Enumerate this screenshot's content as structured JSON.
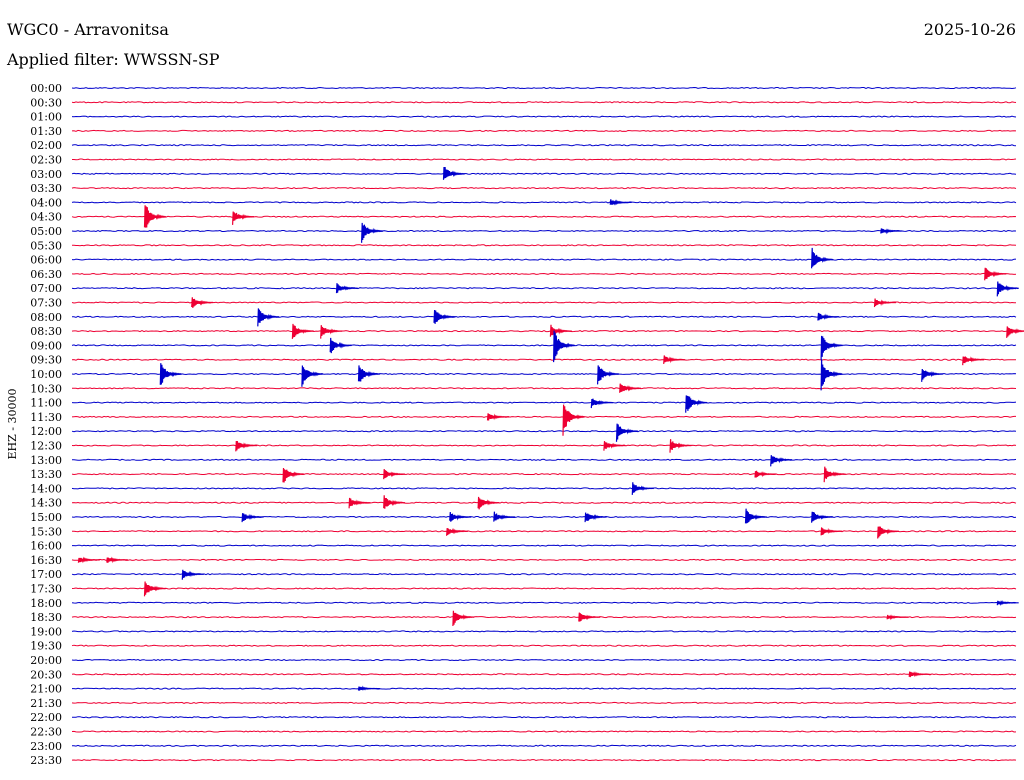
{
  "header": {
    "station": "WGC0 - Arravonitsa",
    "date": "2025-10-26",
    "filter": "Applied filter: WWSSN-SP"
  },
  "chart_data": {
    "type": "line",
    "chart_kind": "helicorder",
    "ylabel": "EHZ - 30000",
    "row_colors": [
      "#0000cc",
      "#ee0033"
    ],
    "time_labels": [
      "00:00",
      "00:30",
      "01:00",
      "01:30",
      "02:00",
      "02:30",
      "03:00",
      "03:30",
      "04:00",
      "04:30",
      "05:00",
      "05:30",
      "06:00",
      "06:30",
      "07:00",
      "07:30",
      "08:00",
      "08:30",
      "09:00",
      "09:30",
      "10:00",
      "10:30",
      "11:00",
      "11:30",
      "12:00",
      "12:30",
      "13:00",
      "13:30",
      "14:00",
      "14:30",
      "15:00",
      "15:30",
      "16:00",
      "16:30",
      "17:00",
      "17:30",
      "18:00",
      "18:30",
      "19:00",
      "19:30",
      "20:00",
      "20:30",
      "21:00",
      "21:30",
      "22:00",
      "22:30",
      "23:00",
      "23:30"
    ],
    "x_range_minutes": [
      0,
      30
    ],
    "events": [
      {
        "row": 6,
        "minute": 11.9,
        "amp": 0.8
      },
      {
        "row": 8,
        "minute": 17.2,
        "amp": 0.3
      },
      {
        "row": 9,
        "minute": 2.4,
        "amp": 1.4
      },
      {
        "row": 9,
        "minute": 5.2,
        "amp": 0.7
      },
      {
        "row": 10,
        "minute": 9.3,
        "amp": 1.0
      },
      {
        "row": 10,
        "minute": 25.8,
        "amp": 0.3
      },
      {
        "row": 12,
        "minute": 23.6,
        "amp": 1.1
      },
      {
        "row": 13,
        "minute": 29.1,
        "amp": 0.7
      },
      {
        "row": 14,
        "minute": 8.5,
        "amp": 0.5
      },
      {
        "row": 14,
        "minute": 29.5,
        "amp": 0.7
      },
      {
        "row": 15,
        "minute": 3.9,
        "amp": 0.6
      },
      {
        "row": 15,
        "minute": 25.6,
        "amp": 0.4
      },
      {
        "row": 16,
        "minute": 6.0,
        "amp": 0.9
      },
      {
        "row": 16,
        "minute": 11.6,
        "amp": 0.8
      },
      {
        "row": 16,
        "minute": 23.8,
        "amp": 0.4
      },
      {
        "row": 17,
        "minute": 7.1,
        "amp": 0.8
      },
      {
        "row": 17,
        "minute": 8.0,
        "amp": 0.7
      },
      {
        "row": 17,
        "minute": 15.3,
        "amp": 0.6
      },
      {
        "row": 17,
        "minute": 29.8,
        "amp": 0.6
      },
      {
        "row": 18,
        "minute": 8.3,
        "amp": 0.8
      },
      {
        "row": 18,
        "minute": 15.4,
        "amp": 1.5
      },
      {
        "row": 18,
        "minute": 23.9,
        "amp": 1.3
      },
      {
        "row": 19,
        "minute": 18.9,
        "amp": 0.4
      },
      {
        "row": 19,
        "minute": 28.4,
        "amp": 0.5
      },
      {
        "row": 20,
        "minute": 2.9,
        "amp": 1.2
      },
      {
        "row": 20,
        "minute": 7.4,
        "amp": 1.1
      },
      {
        "row": 20,
        "minute": 9.2,
        "amp": 1.0
      },
      {
        "row": 20,
        "minute": 16.8,
        "amp": 1.0
      },
      {
        "row": 20,
        "minute": 23.9,
        "amp": 1.4
      },
      {
        "row": 20,
        "minute": 27.1,
        "amp": 0.7
      },
      {
        "row": 21,
        "minute": 17.5,
        "amp": 0.6
      },
      {
        "row": 22,
        "minute": 16.6,
        "amp": 0.5
      },
      {
        "row": 22,
        "minute": 19.6,
        "amp": 1.1
      },
      {
        "row": 23,
        "minute": 13.3,
        "amp": 0.4
      },
      {
        "row": 23,
        "minute": 15.7,
        "amp": 1.6
      },
      {
        "row": 24,
        "minute": 17.4,
        "amp": 0.9
      },
      {
        "row": 25,
        "minute": 5.3,
        "amp": 0.6
      },
      {
        "row": 25,
        "minute": 17.0,
        "amp": 0.5
      },
      {
        "row": 25,
        "minute": 19.1,
        "amp": 0.6
      },
      {
        "row": 26,
        "minute": 22.3,
        "amp": 0.6
      },
      {
        "row": 27,
        "minute": 6.8,
        "amp": 0.9
      },
      {
        "row": 27,
        "minute": 10.0,
        "amp": 0.5
      },
      {
        "row": 27,
        "minute": 21.8,
        "amp": 0.4
      },
      {
        "row": 27,
        "minute": 24.0,
        "amp": 0.7
      },
      {
        "row": 28,
        "minute": 17.9,
        "amp": 0.6
      },
      {
        "row": 29,
        "minute": 8.9,
        "amp": 0.5
      },
      {
        "row": 29,
        "minute": 10.0,
        "amp": 0.7
      },
      {
        "row": 29,
        "minute": 13.0,
        "amp": 0.7
      },
      {
        "row": 30,
        "minute": 5.5,
        "amp": 0.5
      },
      {
        "row": 30,
        "minute": 12.1,
        "amp": 0.5
      },
      {
        "row": 30,
        "minute": 13.5,
        "amp": 0.5
      },
      {
        "row": 30,
        "minute": 16.4,
        "amp": 0.6
      },
      {
        "row": 30,
        "minute": 21.5,
        "amp": 0.8
      },
      {
        "row": 30,
        "minute": 23.6,
        "amp": 0.7
      },
      {
        "row": 31,
        "minute": 12.0,
        "amp": 0.4
      },
      {
        "row": 31,
        "minute": 23.9,
        "amp": 0.4
      },
      {
        "row": 31,
        "minute": 25.7,
        "amp": 0.7
      },
      {
        "row": 33,
        "minute": 0.3,
        "amp": 0.3
      },
      {
        "row": 33,
        "minute": 1.2,
        "amp": 0.3
      },
      {
        "row": 34,
        "minute": 3.6,
        "amp": 0.5
      },
      {
        "row": 35,
        "minute": 2.4,
        "amp": 0.8
      },
      {
        "row": 36,
        "minute": 29.5,
        "amp": 0.2
      },
      {
        "row": 37,
        "minute": 12.2,
        "amp": 0.8
      },
      {
        "row": 37,
        "minute": 16.2,
        "amp": 0.5
      },
      {
        "row": 37,
        "minute": 26.0,
        "amp": 0.2
      },
      {
        "row": 41,
        "minute": 26.7,
        "amp": 0.3
      },
      {
        "row": 42,
        "minute": 9.2,
        "amp": 0.2
      }
    ]
  }
}
